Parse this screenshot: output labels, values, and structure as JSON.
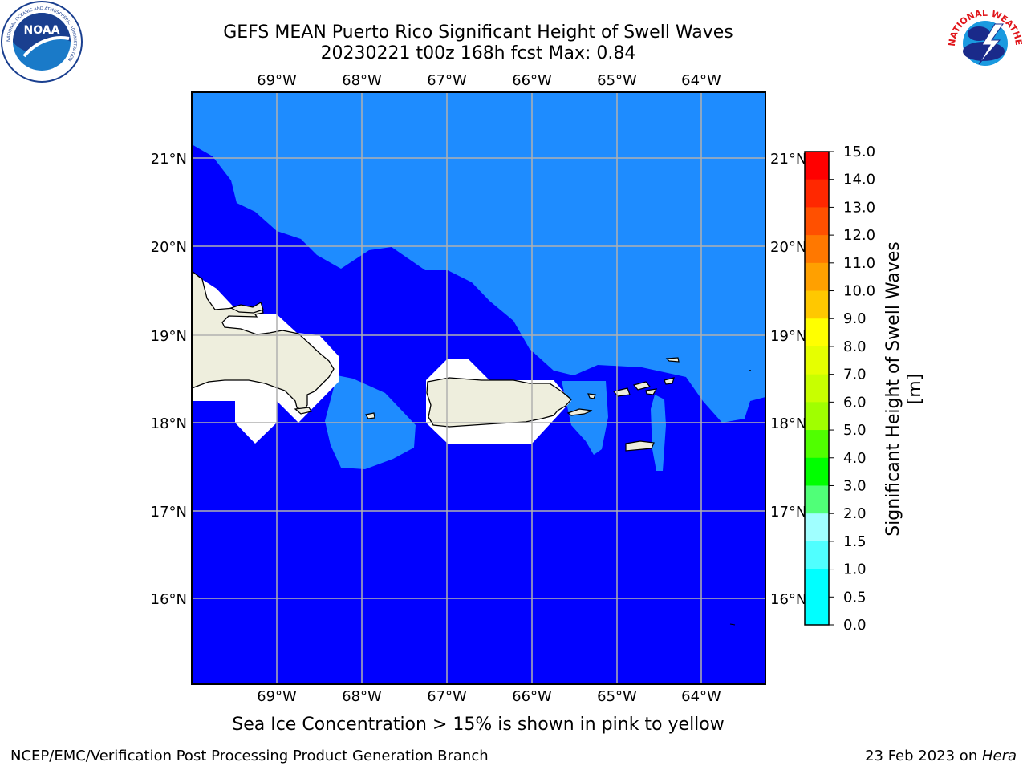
{
  "title": {
    "line1": "GEFS MEAN Puerto Rico Significant Height of Swell Waves",
    "line2": "20230221 t00z 168h fcst   Max: 0.84"
  },
  "map": {
    "lon_labels": [
      "69°W",
      "68°W",
      "67°W",
      "66°W",
      "65°W",
      "64°W"
    ],
    "lat_labels": [
      "21°N",
      "20°N",
      "19°N",
      "18°N",
      "17°N",
      "16°N"
    ],
    "colors": {
      "deep": "#0000ff",
      "mid": "#1e8cff",
      "land": "#eeeedd",
      "grid": "#b0b0b0"
    }
  },
  "colorbar": {
    "label": "Significant Height of Swell Waves [m]",
    "ticks": [
      "15.0",
      "14.0",
      "13.0",
      "12.0",
      "11.0",
      "10.0",
      "9.0",
      "8.0",
      "7.0",
      "6.0",
      "5.0",
      "4.0",
      "3.0",
      "2.0",
      "1.5",
      "1.0",
      "0.5",
      "0.0"
    ],
    "colors": [
      "#ff0000",
      "#ff2800",
      "#ff5000",
      "#ff7800",
      "#ffa000",
      "#ffc800",
      "#ffff00",
      "#e6ff00",
      "#c8ff00",
      "#a0ff00",
      "#50ff00",
      "#00ff00",
      "#50ff78",
      "#a0ffff",
      "#50ffff",
      "#00ffff",
      "#00ffff",
      "#1e8cff",
      "#0000ff"
    ]
  },
  "note": "Sea Ice Concentration > 15% is shown in pink to yellow",
  "footer": {
    "left": "NCEP/EMC/Verification Post Processing Product Generation Branch",
    "date": "23 Feb 2023 on ",
    "machine": "Hera"
  },
  "logos": {
    "noaa": "NOAA",
    "nws_arc": "NATIONAL WEATHER SERVICE",
    "noaa_ring": "NATIONAL OCEANIC AND ATMOSPHERIC ADMINISTRATION"
  }
}
